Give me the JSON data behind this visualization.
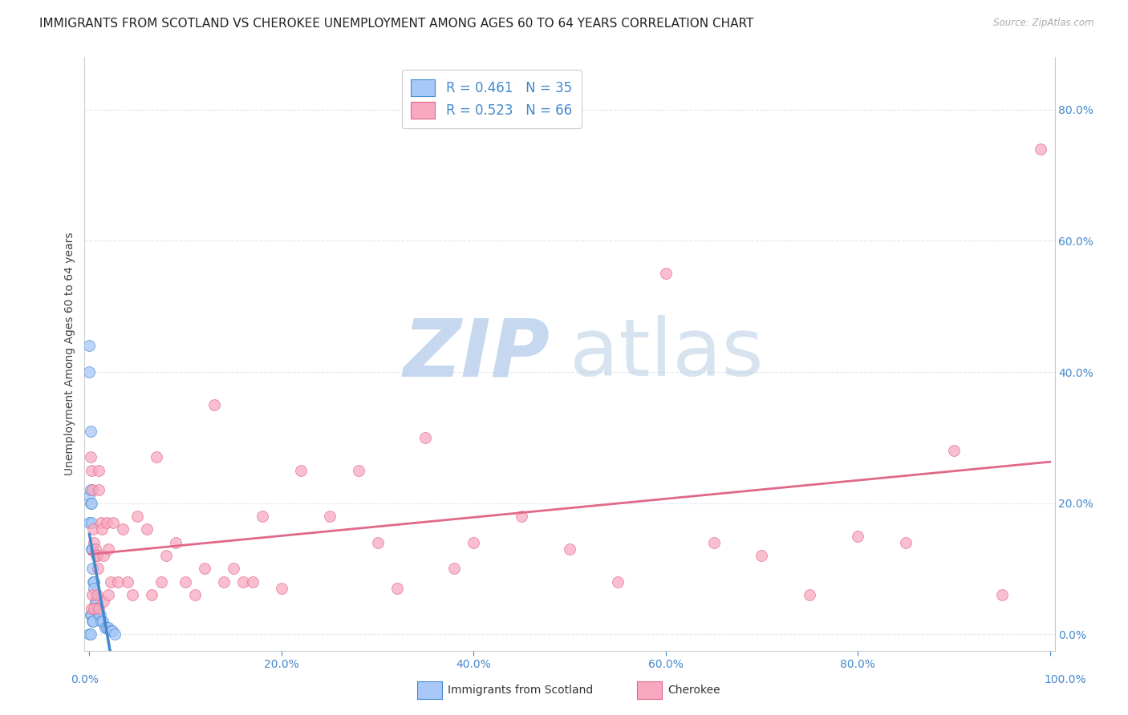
{
  "title": "IMMIGRANTS FROM SCOTLAND VS CHEROKEE UNEMPLOYMENT AMONG AGES 60 TO 64 YEARS CORRELATION CHART",
  "source": "Source: ZipAtlas.com",
  "ylabel": "Unemployment Among Ages 60 to 64 years",
  "legend_label_1": "Immigrants from Scotland",
  "legend_label_2": "Cherokee",
  "R1": 0.461,
  "N1": 35,
  "R2": 0.523,
  "N2": 66,
  "color_scotland": "#a8c8f8",
  "color_cherokee": "#f8a8c0",
  "trendline_scotland_color": "#4488cc",
  "trendline_cherokee_color": "#e06888",
  "watermark_zip_color": "#c8d8f0",
  "watermark_atlas_color": "#b0c8e8",
  "scotland_x": [
    0.0,
    0.0,
    0.0,
    0.0,
    0.0,
    0.001,
    0.001,
    0.001,
    0.001,
    0.001,
    0.002,
    0.002,
    0.002,
    0.002,
    0.003,
    0.003,
    0.003,
    0.004,
    0.004,
    0.005,
    0.005,
    0.006,
    0.007,
    0.008,
    0.009,
    0.01,
    0.011,
    0.012,
    0.014,
    0.016,
    0.018,
    0.02,
    0.022,
    0.024,
    0.026
  ],
  "scotland_y": [
    0.44,
    0.4,
    0.21,
    0.17,
    0.0,
    0.31,
    0.22,
    0.2,
    0.03,
    0.0,
    0.2,
    0.17,
    0.13,
    0.03,
    0.13,
    0.1,
    0.02,
    0.08,
    0.02,
    0.08,
    0.07,
    0.05,
    0.05,
    0.04,
    0.04,
    0.03,
    0.03,
    0.02,
    0.02,
    0.01,
    0.01,
    0.01,
    0.005,
    0.005,
    0.0
  ],
  "cherokee_x": [
    0.001,
    0.002,
    0.003,
    0.004,
    0.005,
    0.006,
    0.007,
    0.008,
    0.009,
    0.01,
    0.01,
    0.012,
    0.013,
    0.015,
    0.018,
    0.02,
    0.022,
    0.025,
    0.03,
    0.035,
    0.04,
    0.045,
    0.05,
    0.06,
    0.065,
    0.07,
    0.075,
    0.08,
    0.09,
    0.1,
    0.11,
    0.12,
    0.13,
    0.14,
    0.15,
    0.16,
    0.17,
    0.18,
    0.2,
    0.22,
    0.25,
    0.28,
    0.3,
    0.32,
    0.35,
    0.38,
    0.4,
    0.45,
    0.5,
    0.55,
    0.6,
    0.65,
    0.7,
    0.75,
    0.8,
    0.85,
    0.9,
    0.95,
    0.99,
    0.002,
    0.003,
    0.005,
    0.008,
    0.01,
    0.015,
    0.02
  ],
  "cherokee_y": [
    0.27,
    0.25,
    0.22,
    0.16,
    0.14,
    0.13,
    0.12,
    0.12,
    0.1,
    0.25,
    0.22,
    0.17,
    0.16,
    0.12,
    0.17,
    0.13,
    0.08,
    0.17,
    0.08,
    0.16,
    0.08,
    0.06,
    0.18,
    0.16,
    0.06,
    0.27,
    0.08,
    0.12,
    0.14,
    0.08,
    0.06,
    0.1,
    0.35,
    0.08,
    0.1,
    0.08,
    0.08,
    0.18,
    0.07,
    0.25,
    0.18,
    0.25,
    0.14,
    0.07,
    0.3,
    0.1,
    0.14,
    0.18,
    0.13,
    0.08,
    0.55,
    0.14,
    0.12,
    0.06,
    0.15,
    0.14,
    0.28,
    0.06,
    0.74,
    0.04,
    0.06,
    0.04,
    0.06,
    0.04,
    0.05,
    0.06
  ],
  "xlim": [
    -0.005,
    1.005
  ],
  "ylim": [
    -0.025,
    0.88
  ],
  "xticks": [
    0.0,
    0.2,
    0.4,
    0.6,
    0.8,
    1.0
  ],
  "xtick_labels_inner": [
    "",
    "20.0%",
    "40.0%",
    "60.0%",
    "80.0%",
    ""
  ],
  "xtick_labels_outer_left": "0.0%",
  "xtick_labels_outer_right": "100.0%",
  "yticks": [
    0.0,
    0.2,
    0.4,
    0.6,
    0.8
  ],
  "ytick_labels": [
    "0.0%",
    "20.0%",
    "40.0%",
    "60.0%",
    "80.0%"
  ],
  "grid_color": "#e0e8f0",
  "background_color": "#ffffff",
  "axis_color": "#cccccc",
  "tick_color": "#4488cc",
  "title_fontsize": 11,
  "axis_label_fontsize": 10,
  "tick_fontsize": 10,
  "legend_fontsize": 12
}
